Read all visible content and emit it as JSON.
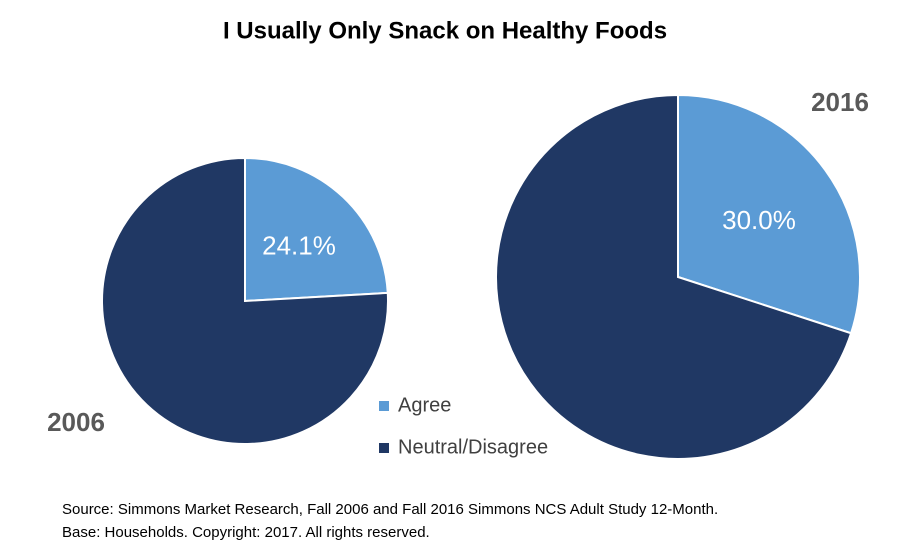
{
  "title": "I Usually Only Snack on Healthy Foods",
  "legend": {
    "categories": [
      "Agree",
      "Neutral/Disagree"
    ],
    "colors": [
      "#5b9bd5",
      "#203864"
    ]
  },
  "source": [
    "Source:  Simmons Market Research, Fall 2006 and Fall 2016 Simmons NCS Adult Study 12-Month.",
    "Base:  Households.  Copyright:  2017.  All rights reserved."
  ],
  "chart_data": [
    {
      "type": "pie",
      "label": "2006",
      "values": [
        24.1,
        75.9
      ],
      "value_labels": [
        "24.1%",
        null
      ]
    },
    {
      "type": "pie",
      "label": "2016",
      "values": [
        30.0,
        70.0
      ],
      "value_labels": [
        "30.0%",
        null
      ]
    }
  ]
}
